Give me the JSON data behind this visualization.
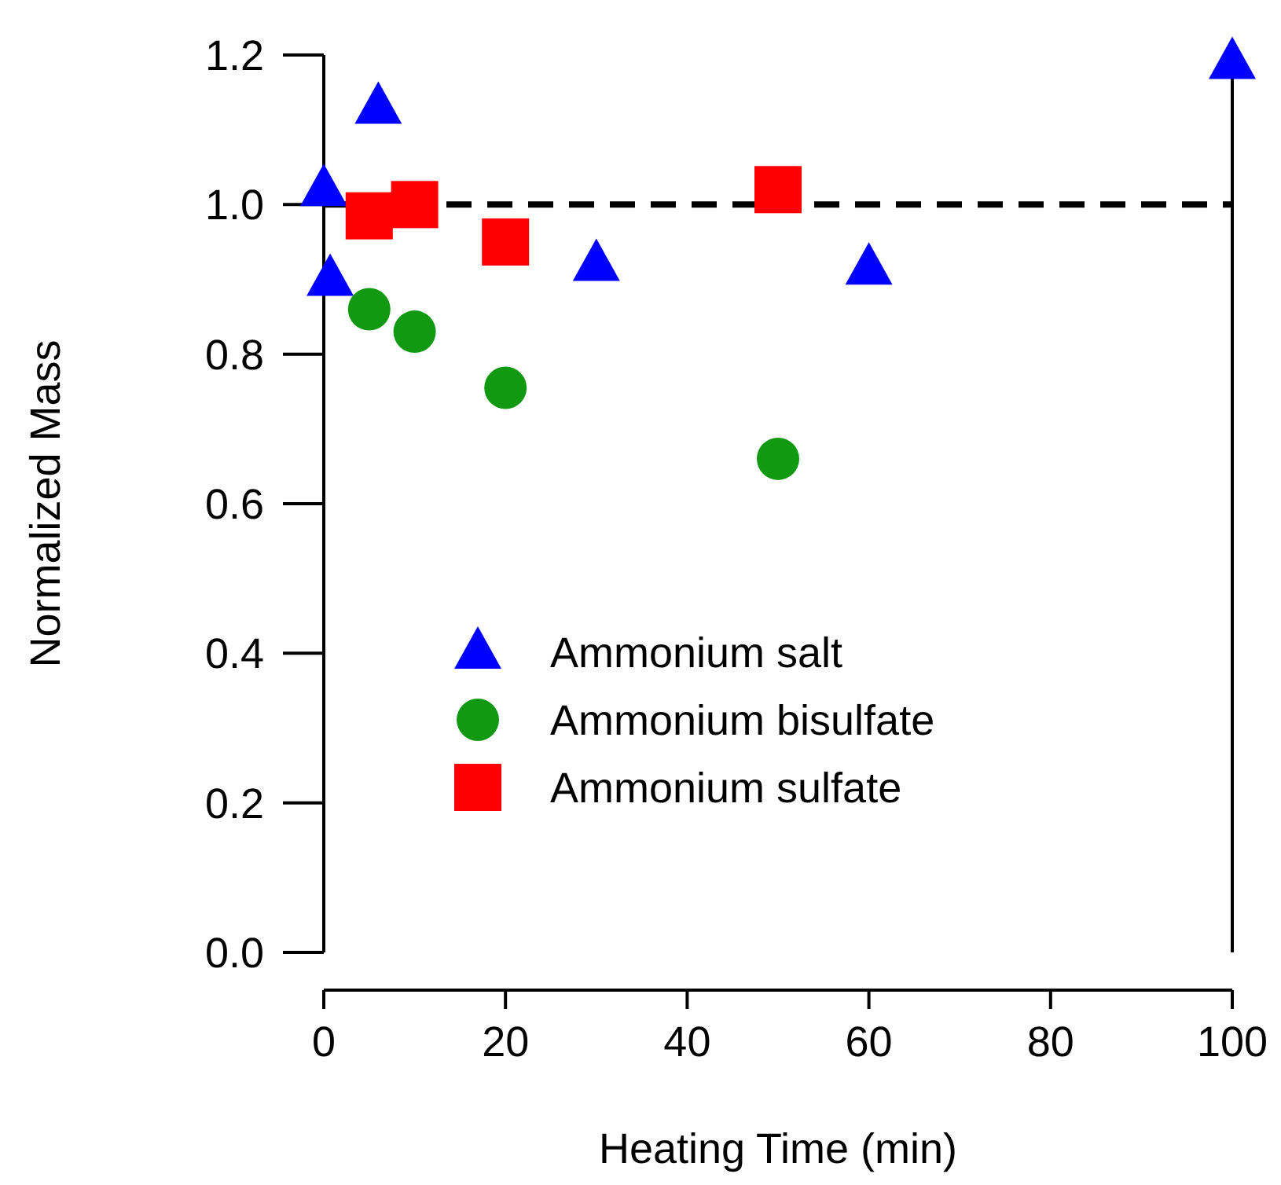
{
  "chart_data": {
    "type": "scatter",
    "xlabel": "Heating Time (min)",
    "ylabel": "Normalized Mass",
    "xlim": [
      0,
      100
    ],
    "xticks": [
      0,
      20,
      40,
      60,
      80,
      100
    ],
    "ylim": [
      0,
      1.2
    ],
    "yticks": [
      {
        "value": 0,
        "label": "0.0"
      },
      {
        "value": 0.2,
        "label": "0.2"
      },
      {
        "value": 0.4,
        "label": "0.4"
      },
      {
        "value": 0.6,
        "label": "0.6"
      },
      {
        "value": 0.8,
        "label": "0.8"
      },
      {
        "value": 1,
        "label": "1.0"
      },
      {
        "value": 1.2,
        "label": "1.2"
      }
    ],
    "grid": false,
    "legend": "bottom",
    "ref_lines": [
      {
        "axis": "y",
        "value": 1,
        "color": "#000000",
        "line_style": "dashed"
      }
    ],
    "series": [
      {
        "name": "Ammonium salt",
        "color": "#0000ff",
        "marker": "triangle",
        "x": [
          0,
          0.7,
          6,
          30,
          60,
          100
        ],
        "values": [
          1.02,
          0.9,
          1.13,
          0.92,
          0.915,
          1.19
        ]
      },
      {
        "name": "Ammonium bisulfate",
        "color": "#119911",
        "marker": "circle",
        "x": [
          5,
          10,
          20,
          50
        ],
        "values": [
          0.86,
          0.83,
          0.755,
          0.66
        ]
      },
      {
        "name": "Ammonium sulfate",
        "color": "#ff0000",
        "marker": "square",
        "x": [
          5,
          10,
          20,
          50
        ],
        "values": [
          0.985,
          1.0,
          0.95,
          1.02
        ]
      }
    ]
  }
}
